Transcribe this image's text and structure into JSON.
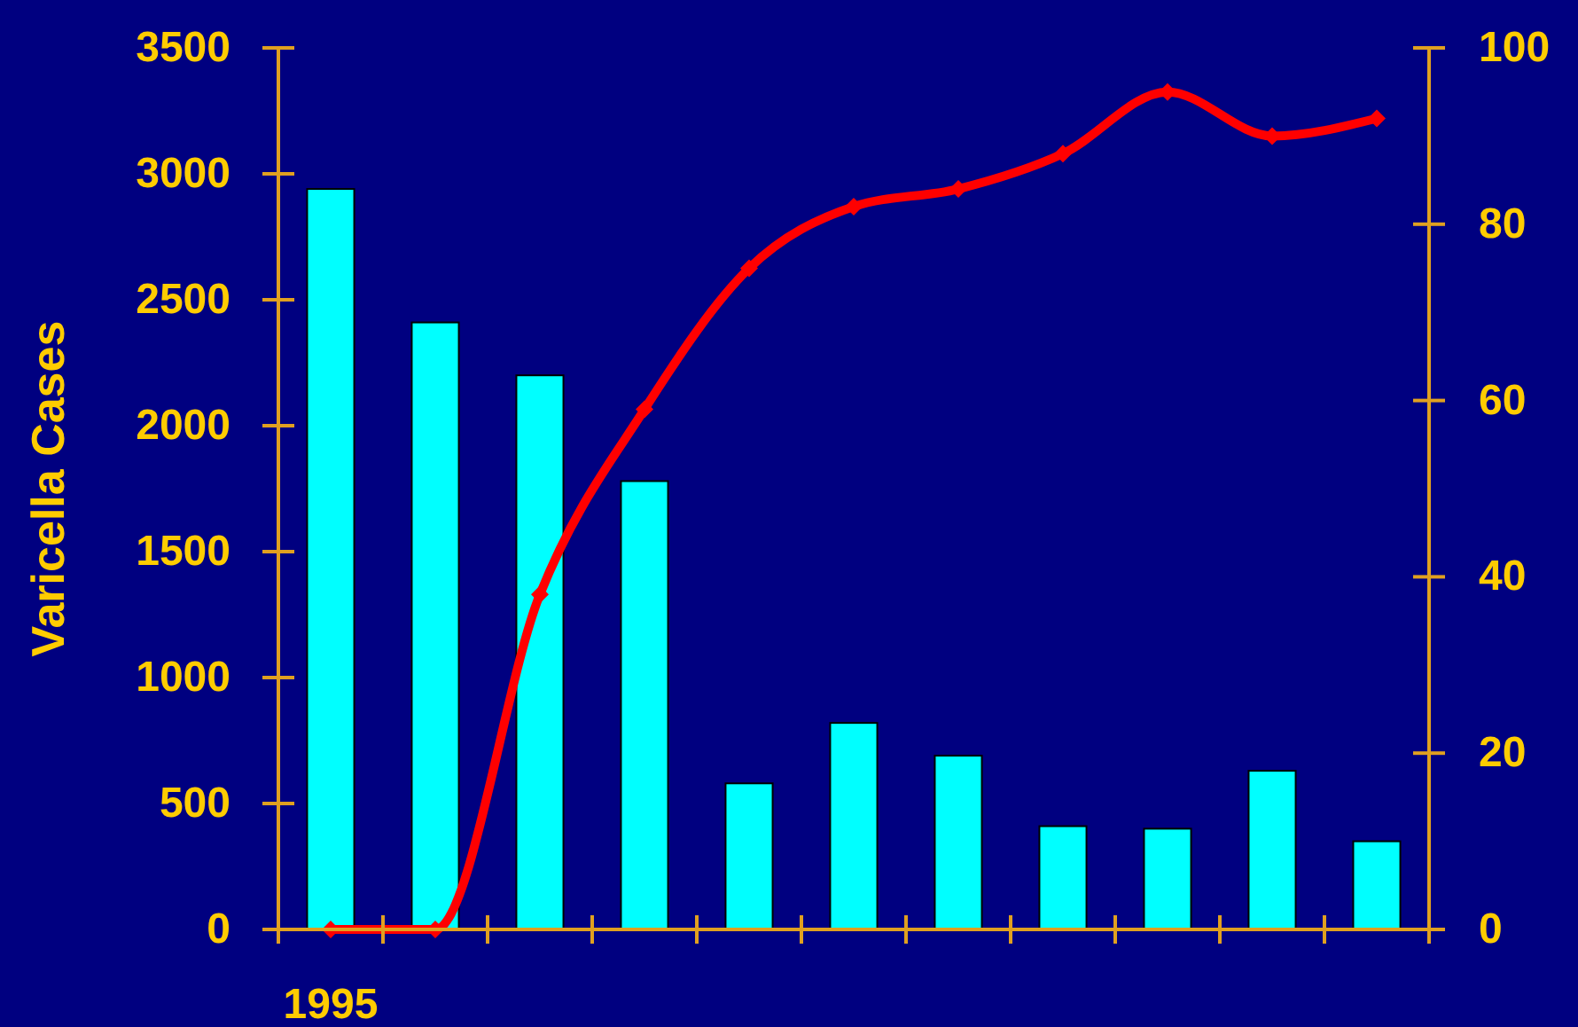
{
  "chart_data": {
    "type": "bar",
    "ylabel": "Varicella Cases",
    "categories": [
      "1995",
      null,
      null,
      null,
      null,
      null,
      null,
      null,
      null,
      null,
      null
    ],
    "series": [
      {
        "color": "#00ffff",
        "values": [
          2940,
          2410,
          2200,
          1780,
          580,
          820,
          690,
          410,
          400,
          630,
          350
        ]
      },
      {
        "type": "line",
        "axis": "y2",
        "color": "#ff0000",
        "marker": "diamond",
        "line_style": "solid",
        "values": [
          0,
          0,
          38,
          59,
          75,
          82,
          84,
          88,
          95,
          90,
          92
        ]
      }
    ],
    "ylim": [
      0,
      3500
    ],
    "yticks": [
      0,
      500,
      1000,
      1500,
      2000,
      2500,
      3000,
      3500
    ],
    "y2lim": [
      0,
      100
    ],
    "y2ticks": [
      0,
      20,
      40,
      60,
      80,
      100
    ],
    "grid": false
  }
}
